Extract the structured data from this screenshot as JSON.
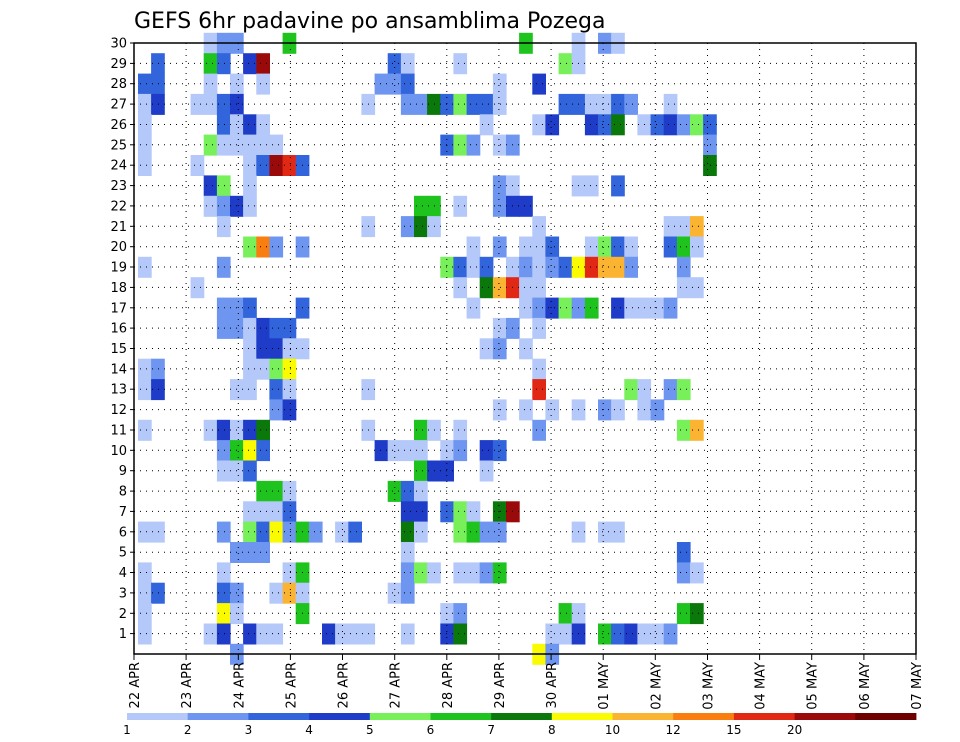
{
  "chart_data": {
    "type": "heatmap",
    "title": "GEFS 6hr padavine po ansamblima Pozega",
    "xlabel": "",
    "ylabel": "",
    "x_ticks": [
      "22 APR",
      "23 APR",
      "24 APR",
      "25 APR",
      "26 APR",
      "27 APR",
      "28 APR",
      "29 APR",
      "30 APR",
      "01 MAY",
      "02 MAY",
      "03 MAY",
      "04 MAY",
      "05 MAY",
      "06 MAY",
      "07 MAY"
    ],
    "y_ticks": [
      "1",
      "2",
      "3",
      "4",
      "5",
      "6",
      "7",
      "8",
      "9",
      "10",
      "11",
      "12",
      "13",
      "14",
      "15",
      "16",
      "17",
      "18",
      "19",
      "20",
      "21",
      "22",
      "23",
      "24",
      "25",
      "26",
      "27",
      "28",
      "29",
      "30"
    ],
    "x_range_days": [
      0,
      15
    ],
    "y_range": [
      0,
      30
    ],
    "grid": true,
    "color_levels": [
      1,
      2,
      3,
      4,
      5,
      6,
      7,
      8,
      10,
      12,
      15,
      20
    ],
    "colorbar_labels": [
      "1",
      "2",
      "3",
      "4",
      "5",
      "6",
      "7",
      "8",
      "10",
      "12",
      "15",
      "20"
    ],
    "colorbar_colors": [
      "#b4c8fa",
      "#6e96f0",
      "#3264dc",
      "#1e3cc8",
      "#78f05a",
      "#1ec31e",
      "#0a780a",
      "#fafa00",
      "#fab432",
      "#fa7d0f",
      "#e12814",
      "#9b0a0a",
      "#6e0000"
    ],
    "cells": [
      [
        5,
        30,
        0
      ],
      [
        6,
        30,
        1
      ],
      [
        7,
        30,
        1
      ],
      [
        11,
        30,
        5
      ],
      [
        29,
        30,
        5
      ],
      [
        33,
        30,
        0
      ],
      [
        35,
        30,
        1
      ],
      [
        36,
        30,
        0
      ],
      [
        1,
        29,
        2
      ],
      [
        5,
        29,
        5
      ],
      [
        6,
        29,
        2
      ],
      [
        8,
        29,
        3
      ],
      [
        9,
        29,
        11
      ],
      [
        19,
        29,
        2
      ],
      [
        20,
        29,
        0
      ],
      [
        24,
        29,
        0
      ],
      [
        32,
        29,
        4
      ],
      [
        33,
        29,
        0
      ],
      [
        0,
        28,
        2
      ],
      [
        1,
        28,
        2
      ],
      [
        5,
        28,
        0
      ],
      [
        7,
        28,
        0
      ],
      [
        9,
        28,
        0
      ],
      [
        18,
        28,
        1
      ],
      [
        19,
        28,
        1
      ],
      [
        20,
        28,
        2
      ],
      [
        27,
        28,
        0
      ],
      [
        30,
        28,
        3
      ],
      [
        0,
        27,
        0
      ],
      [
        1,
        27,
        3
      ],
      [
        4,
        27,
        0
      ],
      [
        5,
        27,
        0
      ],
      [
        6,
        27,
        2
      ],
      [
        7,
        27,
        3
      ],
      [
        17,
        27,
        0
      ],
      [
        20,
        27,
        1
      ],
      [
        21,
        27,
        1
      ],
      [
        22,
        27,
        6
      ],
      [
        23,
        27,
        2
      ],
      [
        24,
        27,
        4
      ],
      [
        25,
        27,
        2
      ],
      [
        26,
        27,
        2
      ],
      [
        27,
        27,
        0
      ],
      [
        32,
        27,
        2
      ],
      [
        33,
        27,
        2
      ],
      [
        34,
        27,
        0
      ],
      [
        35,
        27,
        0
      ],
      [
        36,
        27,
        2
      ],
      [
        37,
        27,
        1
      ],
      [
        40,
        27,
        0
      ],
      [
        0,
        26,
        0
      ],
      [
        6,
        26,
        2
      ],
      [
        7,
        26,
        0
      ],
      [
        8,
        26,
        3
      ],
      [
        9,
        26,
        0
      ],
      [
        26,
        26,
        0
      ],
      [
        30,
        26,
        0
      ],
      [
        31,
        26,
        3
      ],
      [
        34,
        26,
        3
      ],
      [
        35,
        26,
        2
      ],
      [
        36,
        26,
        6
      ],
      [
        38,
        26,
        0
      ],
      [
        39,
        26,
        2
      ],
      [
        40,
        26,
        3
      ],
      [
        41,
        26,
        1
      ],
      [
        42,
        26,
        4
      ],
      [
        43,
        26,
        2
      ],
      [
        0,
        25,
        0
      ],
      [
        5,
        25,
        4
      ],
      [
        6,
        25,
        0
      ],
      [
        7,
        25,
        0
      ],
      [
        8,
        25,
        0
      ],
      [
        9,
        25,
        0
      ],
      [
        10,
        25,
        0
      ],
      [
        23,
        25,
        2
      ],
      [
        24,
        25,
        4
      ],
      [
        25,
        25,
        1
      ],
      [
        27,
        25,
        0
      ],
      [
        28,
        25,
        1
      ],
      [
        43,
        25,
        1
      ],
      [
        0,
        24,
        0
      ],
      [
        4,
        24,
        0
      ],
      [
        8,
        24,
        0
      ],
      [
        9,
        24,
        2
      ],
      [
        10,
        24,
        11
      ],
      [
        11,
        24,
        10
      ],
      [
        12,
        24,
        2
      ],
      [
        43,
        24,
        6
      ],
      [
        5,
        23,
        3
      ],
      [
        6,
        23,
        4
      ],
      [
        8,
        23,
        0
      ],
      [
        27,
        23,
        1
      ],
      [
        28,
        23,
        0
      ],
      [
        33,
        23,
        0
      ],
      [
        34,
        23,
        0
      ],
      [
        36,
        23,
        2
      ],
      [
        5,
        22,
        0
      ],
      [
        6,
        22,
        1
      ],
      [
        7,
        22,
        3
      ],
      [
        8,
        22,
        0
      ],
      [
        21,
        22,
        5
      ],
      [
        22,
        22,
        5
      ],
      [
        24,
        22,
        0
      ],
      [
        27,
        22,
        1
      ],
      [
        28,
        22,
        3
      ],
      [
        29,
        22,
        3
      ],
      [
        6,
        21,
        0
      ],
      [
        17,
        21,
        0
      ],
      [
        20,
        21,
        1
      ],
      [
        21,
        21,
        6
      ],
      [
        22,
        21,
        0
      ],
      [
        30,
        21,
        0
      ],
      [
        40,
        21,
        0
      ],
      [
        41,
        21,
        0
      ],
      [
        42,
        21,
        8
      ],
      [
        8,
        20,
        4
      ],
      [
        9,
        20,
        9
      ],
      [
        10,
        20,
        1
      ],
      [
        12,
        20,
        1
      ],
      [
        25,
        20,
        0
      ],
      [
        27,
        20,
        1
      ],
      [
        29,
        20,
        0
      ],
      [
        30,
        20,
        0
      ],
      [
        31,
        20,
        2
      ],
      [
        34,
        20,
        0
      ],
      [
        35,
        20,
        4
      ],
      [
        36,
        20,
        2
      ],
      [
        37,
        20,
        0
      ],
      [
        40,
        20,
        2
      ],
      [
        41,
        20,
        5
      ],
      [
        42,
        20,
        0
      ],
      [
        0,
        19,
        0
      ],
      [
        6,
        19,
        1
      ],
      [
        23,
        19,
        4
      ],
      [
        24,
        19,
        2
      ],
      [
        25,
        19,
        0
      ],
      [
        26,
        19,
        2
      ],
      [
        28,
        19,
        0
      ],
      [
        29,
        19,
        1
      ],
      [
        30,
        19,
        0
      ],
      [
        31,
        19,
        1
      ],
      [
        32,
        19,
        2
      ],
      [
        33,
        19,
        7
      ],
      [
        34,
        19,
        10
      ],
      [
        35,
        19,
        8
      ],
      [
        36,
        19,
        8
      ],
      [
        37,
        19,
        1
      ],
      [
        41,
        19,
        1
      ],
      [
        4,
        18,
        0
      ],
      [
        24,
        18,
        0
      ],
      [
        26,
        18,
        6
      ],
      [
        27,
        18,
        8
      ],
      [
        28,
        18,
        10
      ],
      [
        29,
        18,
        0
      ],
      [
        30,
        18,
        0
      ],
      [
        41,
        18,
        0
      ],
      [
        42,
        18,
        0
      ],
      [
        6,
        17,
        1
      ],
      [
        7,
        17,
        1
      ],
      [
        8,
        17,
        2
      ],
      [
        12,
        17,
        2
      ],
      [
        25,
        17,
        0
      ],
      [
        29,
        17,
        0
      ],
      [
        30,
        17,
        1
      ],
      [
        31,
        17,
        3
      ],
      [
        32,
        17,
        4
      ],
      [
        33,
        17,
        1
      ],
      [
        34,
        17,
        5
      ],
      [
        36,
        17,
        3
      ],
      [
        37,
        17,
        0
      ],
      [
        38,
        17,
        0
      ],
      [
        39,
        17,
        0
      ],
      [
        40,
        17,
        1
      ],
      [
        6,
        16,
        1
      ],
      [
        7,
        16,
        1
      ],
      [
        8,
        16,
        0
      ],
      [
        9,
        16,
        3
      ],
      [
        10,
        16,
        2
      ],
      [
        11,
        16,
        2
      ],
      [
        27,
        16,
        0
      ],
      [
        28,
        16,
        1
      ],
      [
        30,
        16,
        0
      ],
      [
        8,
        15,
        0
      ],
      [
        9,
        15,
        3
      ],
      [
        10,
        15,
        3
      ],
      [
        11,
        15,
        0
      ],
      [
        12,
        15,
        0
      ],
      [
        26,
        15,
        0
      ],
      [
        27,
        15,
        1
      ],
      [
        29,
        15,
        0
      ],
      [
        0,
        14,
        0
      ],
      [
        1,
        14,
        1
      ],
      [
        8,
        14,
        0
      ],
      [
        9,
        14,
        0
      ],
      [
        10,
        14,
        4
      ],
      [
        11,
        14,
        7
      ],
      [
        30,
        14,
        0
      ],
      [
        0,
        13,
        0
      ],
      [
        1,
        13,
        3
      ],
      [
        7,
        13,
        0
      ],
      [
        8,
        13,
        0
      ],
      [
        10,
        13,
        2
      ],
      [
        11,
        13,
        0
      ],
      [
        17,
        13,
        0
      ],
      [
        30,
        13,
        10
      ],
      [
        37,
        13,
        4
      ],
      [
        38,
        13,
        0
      ],
      [
        40,
        13,
        1
      ],
      [
        41,
        13,
        4
      ],
      [
        10,
        12,
        1
      ],
      [
        11,
        12,
        3
      ],
      [
        27,
        12,
        0
      ],
      [
        29,
        12,
        0
      ],
      [
        31,
        12,
        0
      ],
      [
        33,
        12,
        0
      ],
      [
        35,
        12,
        1
      ],
      [
        36,
        12,
        0
      ],
      [
        38,
        12,
        0
      ],
      [
        39,
        12,
        1
      ],
      [
        0,
        11,
        0
      ],
      [
        5,
        11,
        0
      ],
      [
        6,
        11,
        3
      ],
      [
        7,
        11,
        0
      ],
      [
        8,
        11,
        3
      ],
      [
        9,
        11,
        6
      ],
      [
        17,
        11,
        0
      ],
      [
        21,
        11,
        5
      ],
      [
        22,
        11,
        0
      ],
      [
        24,
        11,
        0
      ],
      [
        30,
        11,
        1
      ],
      [
        41,
        11,
        4
      ],
      [
        42,
        11,
        8
      ],
      [
        6,
        10,
        1
      ],
      [
        7,
        10,
        5
      ],
      [
        8,
        10,
        7
      ],
      [
        9,
        10,
        2
      ],
      [
        18,
        10,
        3
      ],
      [
        19,
        10,
        0
      ],
      [
        20,
        10,
        0
      ],
      [
        21,
        10,
        0
      ],
      [
        23,
        10,
        0
      ],
      [
        24,
        10,
        1
      ],
      [
        26,
        10,
        3
      ],
      [
        27,
        10,
        2
      ],
      [
        6,
        9,
        0
      ],
      [
        7,
        9,
        0
      ],
      [
        8,
        9,
        2
      ],
      [
        21,
        9,
        5
      ],
      [
        22,
        9,
        3
      ],
      [
        23,
        9,
        3
      ],
      [
        26,
        9,
        0
      ],
      [
        9,
        8,
        5
      ],
      [
        10,
        8,
        5
      ],
      [
        11,
        8,
        0
      ],
      [
        19,
        8,
        5
      ],
      [
        20,
        8,
        2
      ],
      [
        21,
        8,
        0
      ],
      [
        8,
        7,
        0
      ],
      [
        9,
        7,
        0
      ],
      [
        10,
        7,
        0
      ],
      [
        11,
        7,
        2
      ],
      [
        20,
        7,
        3
      ],
      [
        21,
        7,
        3
      ],
      [
        23,
        7,
        2
      ],
      [
        24,
        7,
        4
      ],
      [
        25,
        7,
        0
      ],
      [
        27,
        7,
        6
      ],
      [
        28,
        7,
        11
      ],
      [
        0,
        6,
        0
      ],
      [
        1,
        6,
        0
      ],
      [
        6,
        6,
        1
      ],
      [
        8,
        6,
        4
      ],
      [
        9,
        6,
        2
      ],
      [
        10,
        6,
        7
      ],
      [
        11,
        6,
        1
      ],
      [
        12,
        6,
        5
      ],
      [
        13,
        6,
        1
      ],
      [
        15,
        6,
        0
      ],
      [
        16,
        6,
        2
      ],
      [
        20,
        6,
        6
      ],
      [
        21,
        6,
        0
      ],
      [
        24,
        6,
        4
      ],
      [
        25,
        6,
        5
      ],
      [
        26,
        6,
        1
      ],
      [
        27,
        6,
        1
      ],
      [
        33,
        6,
        0
      ],
      [
        35,
        6,
        0
      ],
      [
        36,
        6,
        0
      ],
      [
        7,
        5,
        1
      ],
      [
        8,
        5,
        1
      ],
      [
        9,
        5,
        1
      ],
      [
        20,
        5,
        0
      ],
      [
        41,
        5,
        2
      ],
      [
        0,
        4,
        0
      ],
      [
        6,
        4,
        0
      ],
      [
        11,
        4,
        0
      ],
      [
        12,
        4,
        5
      ],
      [
        20,
        4,
        1
      ],
      [
        21,
        4,
        4
      ],
      [
        22,
        4,
        0
      ],
      [
        24,
        4,
        0
      ],
      [
        25,
        4,
        0
      ],
      [
        26,
        4,
        1
      ],
      [
        27,
        4,
        5
      ],
      [
        41,
        4,
        1
      ],
      [
        42,
        4,
        0
      ],
      [
        0,
        3,
        0
      ],
      [
        1,
        3,
        2
      ],
      [
        6,
        3,
        2
      ],
      [
        7,
        3,
        1
      ],
      [
        10,
        3,
        0
      ],
      [
        11,
        3,
        8
      ],
      [
        12,
        3,
        0
      ],
      [
        19,
        3,
        0
      ],
      [
        20,
        3,
        1
      ],
      [
        0,
        2,
        0
      ],
      [
        6,
        2,
        7
      ],
      [
        7,
        2,
        0
      ],
      [
        12,
        2,
        5
      ],
      [
        23,
        2,
        0
      ],
      [
        24,
        2,
        1
      ],
      [
        32,
        2,
        5
      ],
      [
        33,
        2,
        0
      ],
      [
        41,
        2,
        5
      ],
      [
        42,
        2,
        6
      ],
      [
        0,
        1,
        0
      ],
      [
        5,
        1,
        0
      ],
      [
        6,
        1,
        3
      ],
      [
        8,
        1,
        3
      ],
      [
        9,
        1,
        0
      ],
      [
        10,
        1,
        0
      ],
      [
        14,
        1,
        3
      ],
      [
        15,
        1,
        0
      ],
      [
        16,
        1,
        0
      ],
      [
        17,
        1,
        0
      ],
      [
        20,
        1,
        0
      ],
      [
        23,
        1,
        3
      ],
      [
        24,
        1,
        6
      ],
      [
        31,
        1,
        0
      ],
      [
        32,
        1,
        0
      ],
      [
        33,
        1,
        3
      ],
      [
        35,
        1,
        5
      ],
      [
        36,
        1,
        2
      ],
      [
        37,
        1,
        3
      ],
      [
        38,
        1,
        0
      ],
      [
        39,
        1,
        0
      ],
      [
        40,
        1,
        1
      ],
      [
        7,
        0,
        1
      ],
      [
        30,
        0,
        7
      ],
      [
        31,
        0,
        1
      ]
    ]
  }
}
